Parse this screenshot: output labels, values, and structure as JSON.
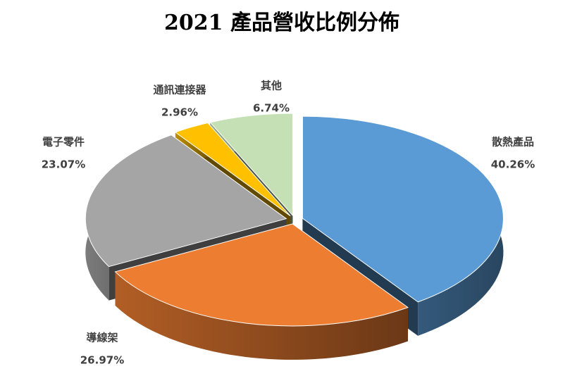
{
  "chart_data": {
    "type": "pie3d",
    "title": "2021 產品營收比例分佈",
    "categories": [
      "散熱產品",
      "導線架",
      "電子零件",
      "通訊連接器",
      "其他"
    ],
    "values": [
      40.26,
      26.97,
      23.07,
      2.96,
      6.74
    ],
    "value_labels": [
      "40.26%",
      "26.97%",
      "23.07%",
      "2.96%",
      "6.74%"
    ],
    "colors": [
      "#5b9bd5",
      "#ed7d31",
      "#a5a5a5",
      "#ffc000",
      "#c5e0b4"
    ]
  }
}
